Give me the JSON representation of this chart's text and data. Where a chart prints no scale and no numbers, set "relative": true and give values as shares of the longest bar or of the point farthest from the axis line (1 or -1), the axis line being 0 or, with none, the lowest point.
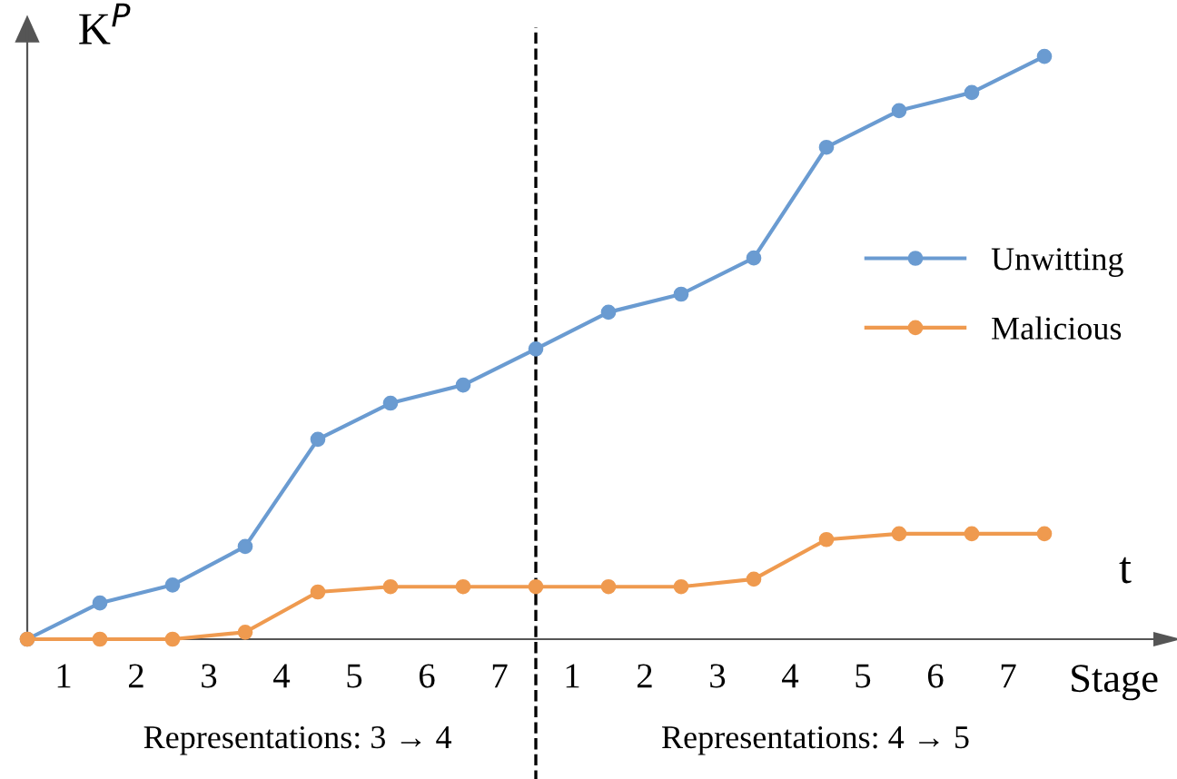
{
  "chart_data": {
    "type": "line",
    "relative": true,
    "categories": [
      null,
      null,
      null,
      null,
      null,
      null,
      null,
      null,
      null,
      null,
      null,
      null,
      null,
      null,
      null
    ],
    "xlabel": "Stage",
    "ylabel": "K$^{P}$",
    "series": [
      {
        "name": "Unwitting",
        "color": "#6a9bd1",
        "values": [
          0,
          0.062,
          0.093,
          0.159,
          0.343,
          0.405,
          0.436,
          0.498,
          0.561,
          0.592,
          0.654,
          0.844,
          0.907,
          0.938,
          1
        ]
      },
      {
        "name": "Malicious",
        "color": "#ef9a4f",
        "values": [
          0,
          0,
          0,
          0.012,
          0.081,
          0.09,
          0.09,
          0.09,
          0.09,
          0.09,
          0.103,
          0.171,
          0.181,
          0.181,
          0.181
        ]
      }
    ],
    "annotations": [
      "1",
      "2",
      "3",
      "4",
      "5",
      "6",
      "7",
      "1",
      "2",
      "3",
      "4",
      "5",
      "6",
      "7",
      "t",
      "Representations: 3 → 4",
      "Representations: 4 → 5"
    ],
    "marker": "circle",
    "line_style": "solid",
    "legend": "right",
    "grid": false
  }
}
